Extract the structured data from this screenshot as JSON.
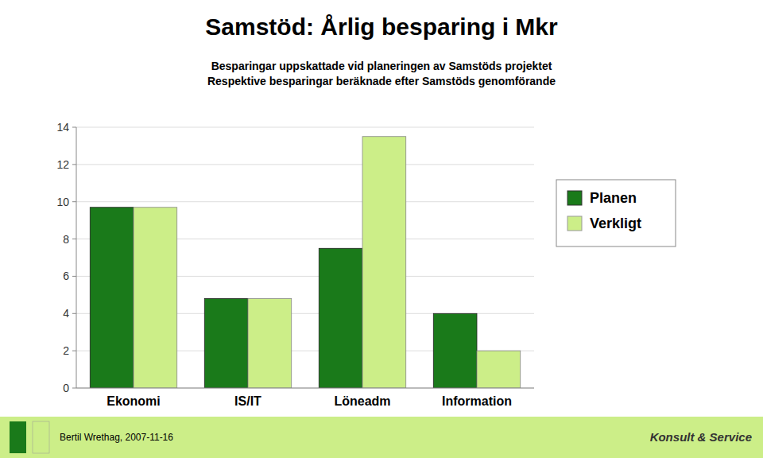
{
  "chart_data": {
    "type": "bar",
    "title": "Samstöd: Årlig besparing i Mkr",
    "subtitle": [
      "Besparingar uppskattade vid planeringen av Samstöds projektet",
      "Respektive besparingar beräknade efter Samstöds genomförande"
    ],
    "annotations": [
      "Bertil Wrethag, 2007-11-16",
      "Konsult & Service"
    ],
    "categories": [
      "Ekonomi",
      "IS/IT",
      "Löneadm",
      "Information"
    ],
    "series": [
      {
        "name": "Planen",
        "color": "#1a7a1a",
        "values": [
          9.7,
          4.8,
          7.5,
          4.0
        ]
      },
      {
        "name": "Verkligt",
        "color": "#ccee88",
        "values": [
          9.7,
          4.8,
          13.5,
          2.0
        ]
      }
    ],
    "ylim": [
      0,
      14
    ],
    "yticks": [
      0,
      2,
      4,
      6,
      8,
      10,
      12,
      14
    ],
    "grid": true,
    "legend": "right"
  }
}
